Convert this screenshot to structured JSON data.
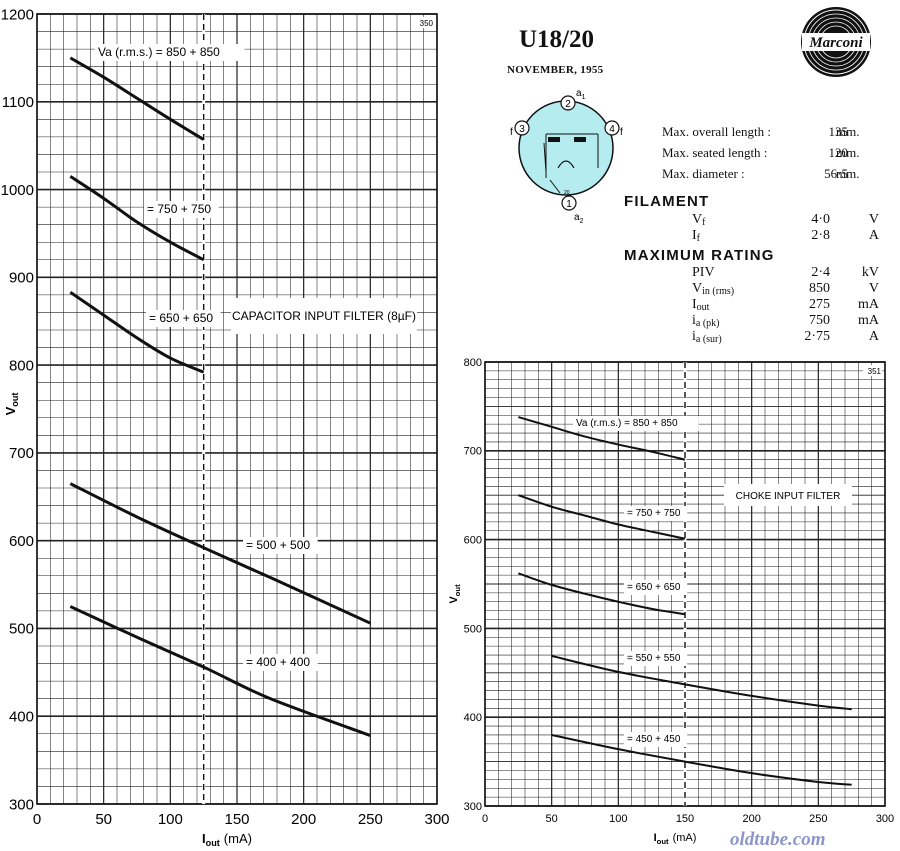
{
  "header": {
    "title": "U18/20",
    "date": "NOVEMBER, 1955",
    "logo_text": "Marconi"
  },
  "base_diagram": {
    "pins": [
      "1",
      "2",
      "3",
      "4"
    ],
    "pin_labels": {
      "a1": "a",
      "a1_sub": "1",
      "a2": "a",
      "a2_sub": "2",
      "f_left": "f",
      "f_right": "f",
      "small": "20"
    },
    "fill_color": "#b5ecef"
  },
  "dimensions": [
    {
      "label": "Max. overall length :",
      "value": "135",
      "unit": "mm."
    },
    {
      "label": "Max. seated length :",
      "value": "120",
      "unit": "mm."
    },
    {
      "label": "Max. diameter :",
      "value": "56·5",
      "unit": "mm."
    }
  ],
  "filament": {
    "heading": "FILAMENT",
    "rows": [
      {
        "sym": "V",
        "sub": "f",
        "value": "4·0",
        "unit": "V"
      },
      {
        "sym": "I",
        "sub": "f",
        "value": "2·8",
        "unit": "A"
      }
    ]
  },
  "max_rating": {
    "heading": "MAXIMUM RATING",
    "rows": [
      {
        "sym": "PIV",
        "sub": "",
        "value": "2·4",
        "unit": "kV"
      },
      {
        "sym": "V",
        "sub": "in (rms)",
        "value": "850",
        "unit": "V"
      },
      {
        "sym": "I",
        "sub": "out",
        "value": "275",
        "unit": "mA"
      },
      {
        "sym": "i",
        "sub": "a (pk)",
        "value": "750",
        "unit": "mA"
      },
      {
        "sym": "i",
        "sub": "a (sur)",
        "value": "2·75",
        "unit": "A"
      }
    ]
  },
  "watermark": "oldtube.com",
  "chart_data": [
    {
      "type": "line",
      "chart_number": "350",
      "title": "CAPACITOR INPUT FILTER (8µF)",
      "xlabel": "I",
      "xlabel_sub": "out",
      "xlabel_unit": "(mA)",
      "ylabel": "V",
      "ylabel_sub": "out",
      "xlim": [
        0,
        300
      ],
      "ylim": [
        300,
        1200
      ],
      "xticks": [
        0,
        50,
        100,
        150,
        200,
        250,
        300
      ],
      "yticks": [
        300,
        400,
        500,
        600,
        700,
        800,
        900,
        1000,
        1100,
        1200
      ],
      "x_minor": 10,
      "y_minor": 20,
      "dashed_x": 125,
      "grid": true,
      "series": [
        {
          "name": "Va (r.m.s.) = 850 + 850",
          "x": [
            25,
            50,
            75,
            100,
            125
          ],
          "y": [
            1150,
            1128,
            1104,
            1080,
            1057
          ]
        },
        {
          "name": "= 750 + 750",
          "x": [
            25,
            50,
            75,
            100,
            125
          ],
          "y": [
            1015,
            990,
            963,
            940,
            920
          ]
        },
        {
          "name": "= 650 + 650",
          "x": [
            25,
            50,
            75,
            100,
            125
          ],
          "y": [
            883,
            857,
            831,
            808,
            792
          ]
        },
        {
          "name": "= 500 + 500",
          "x": [
            25,
            75,
            125,
            175,
            250
          ],
          "y": [
            665,
            627,
            592,
            558,
            506
          ]
        },
        {
          "name": "= 400 + 400",
          "x": [
            25,
            75,
            125,
            175,
            250
          ],
          "y": [
            525,
            490,
            456,
            420,
            378
          ]
        }
      ]
    },
    {
      "type": "line",
      "chart_number": "351",
      "title": "CHOKE INPUT FILTER",
      "xlabel": "I",
      "xlabel_sub": "out",
      "xlabel_unit": "(mA)",
      "ylabel": "V",
      "ylabel_sub": "out",
      "xlim": [
        0,
        300
      ],
      "ylim": [
        300,
        800
      ],
      "xticks": [
        0,
        50,
        100,
        150,
        200,
        250,
        300
      ],
      "yticks": [
        300,
        400,
        500,
        600,
        700,
        800
      ],
      "x_minor": 10,
      "y_minor": 10,
      "dashed_x": 150,
      "grid": true,
      "series": [
        {
          "name": "Va (r.m.s.) = 850 + 850",
          "x": [
            25,
            50,
            75,
            100,
            125,
            150
          ],
          "y": [
            738,
            727,
            716,
            707,
            699,
            690
          ]
        },
        {
          "name": "= 750 + 750",
          "x": [
            25,
            50,
            75,
            100,
            125,
            150
          ],
          "y": [
            650,
            637,
            627,
            617,
            609,
            601
          ]
        },
        {
          "name": "= 650 + 650",
          "x": [
            25,
            50,
            75,
            100,
            125,
            150
          ],
          "y": [
            562,
            549,
            539,
            530,
            522,
            516
          ]
        },
        {
          "name": "= 550 + 550",
          "x": [
            50,
            100,
            150,
            200,
            250,
            275
          ],
          "y": [
            469,
            451,
            437,
            424,
            413,
            409
          ]
        },
        {
          "name": "= 450 + 450",
          "x": [
            50,
            100,
            150,
            200,
            250,
            275
          ],
          "y": [
            380,
            364,
            350,
            337,
            327,
            324
          ]
        }
      ]
    }
  ]
}
